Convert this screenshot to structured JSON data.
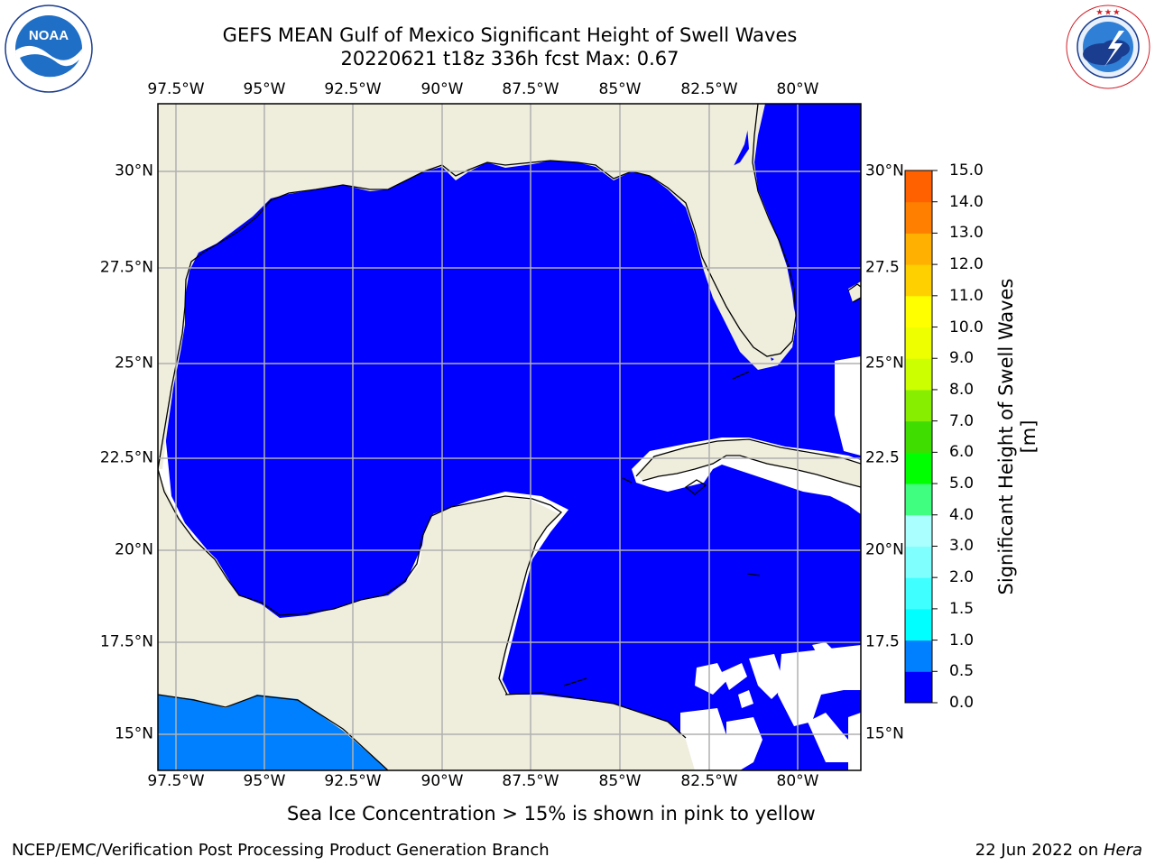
{
  "header": {
    "title_line1": "GEFS MEAN Gulf of Mexico Significant Height of Swell Waves",
    "title_line2": "20220621 t18z 336h fcst   Max: 0.67"
  },
  "logos": {
    "left": {
      "name": "noaa-logo",
      "text": "NOAA",
      "ring_text": "NATIONAL OCEANIC AND ATMOSPHERIC ADMINISTRATION · U.S. DEPARTMENT OF COMMERCE"
    },
    "right": {
      "name": "nws-logo",
      "ring_text": "NATIONAL WEATHER SERVICE"
    }
  },
  "map": {
    "lon_labels": [
      "97.5°W",
      "95°W",
      "92.5°W",
      "90°W",
      "87.5°W",
      "85°W",
      "82.5°W",
      "80°W"
    ],
    "lat_labels_left": [
      "30°N",
      "27.5°N",
      "25°N",
      "22.5°N",
      "20°N",
      "17.5°N",
      "15°N"
    ],
    "lat_labels_right": [
      "30°N",
      "27.5",
      "25°N",
      "22.5",
      "20°N",
      "17.5",
      "15°N"
    ],
    "colors": {
      "land": "#efeddc",
      "swell_low": "#0000ff",
      "swell_mid": "#0080ff",
      "grid": "#b0b0b0",
      "coast": "#000000"
    }
  },
  "colorbar": {
    "label": "Significant Height of Swell Waves [m]",
    "ticks": [
      "15.0",
      "14.0",
      "13.0",
      "12.0",
      "11.0",
      "10.0",
      "9.0",
      "8.0",
      "7.0",
      "6.0",
      "5.0",
      "4.0",
      "3.0",
      "2.0",
      "1.5",
      "1.0",
      "0.5",
      "0.0"
    ],
    "colors": [
      "#0000ff",
      "#0080ff",
      "#00ffff",
      "#40ffff",
      "#80ffff",
      "#aaffff",
      "#40ff80",
      "#00ff00",
      "#40dd00",
      "#88ee00",
      "#ccff00",
      "#eeff00",
      "#ffff00",
      "#ffd000",
      "#ffb000",
      "#ff8000",
      "#ff6000",
      "#ff3000",
      "#ff0000"
    ]
  },
  "footer": {
    "caption": "Sea Ice Concentration > 15% is shown in pink to yellow",
    "credit": "NCEP/EMC/Verification Post Processing Product Generation Branch",
    "date": "22 Jun 2022 on ",
    "host": "Hera"
  }
}
